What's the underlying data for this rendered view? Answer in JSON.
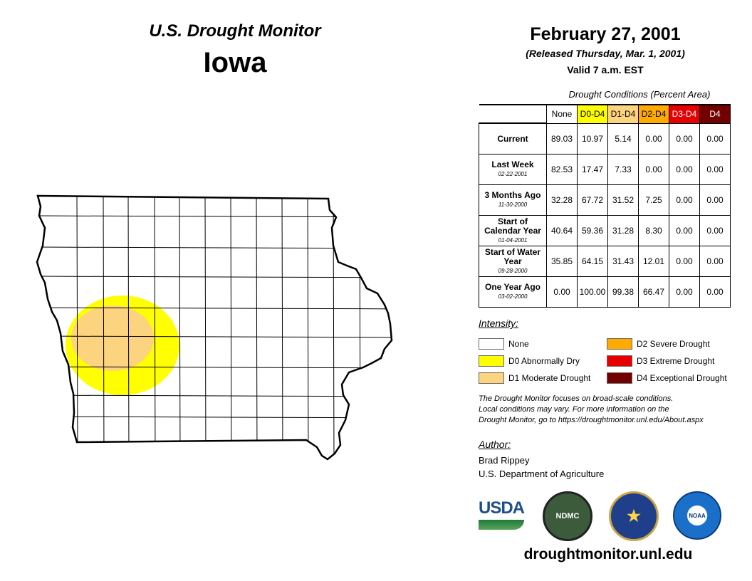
{
  "header": {
    "title": "U.S. Drought Monitor",
    "state": "Iowa",
    "date": "February 27, 2001",
    "released": "(Released Thursday, Mar. 1, 2001)",
    "valid": "Valid 7 a.m. EST"
  },
  "table": {
    "caption": "Drought Conditions (Percent Area)",
    "columns": [
      {
        "label": "None",
        "color": "#ffffff",
        "text": "#000"
      },
      {
        "label": "D0-D4",
        "color": "#ffff00",
        "text": "#000"
      },
      {
        "label": "D1-D4",
        "color": "#fcd37f",
        "text": "#000"
      },
      {
        "label": "D2-D4",
        "color": "#ffaa00",
        "text": "#000"
      },
      {
        "label": "D3-D4",
        "color": "#e60000",
        "text": "#fff"
      },
      {
        "label": "D4",
        "color": "#730000",
        "text": "#fff"
      }
    ],
    "rows": [
      {
        "label": "Current",
        "date": "",
        "values": [
          "89.03",
          "10.97",
          "5.14",
          "0.00",
          "0.00",
          "0.00"
        ]
      },
      {
        "label": "Last Week",
        "date": "02-22-2001",
        "values": [
          "82.53",
          "17.47",
          "7.33",
          "0.00",
          "0.00",
          "0.00"
        ]
      },
      {
        "label": "3 Months Ago",
        "date": "11-30-2000",
        "values": [
          "32.28",
          "67.72",
          "31.52",
          "7.25",
          "0.00",
          "0.00"
        ]
      },
      {
        "label": "Start of Calendar Year",
        "date": "01-04-2001",
        "values": [
          "40.64",
          "59.36",
          "31.28",
          "8.30",
          "0.00",
          "0.00"
        ]
      },
      {
        "label": "Start of Water Year",
        "date": "09-28-2000",
        "values": [
          "35.85",
          "64.15",
          "31.43",
          "12.01",
          "0.00",
          "0.00"
        ]
      },
      {
        "label": "One Year Ago",
        "date": "03-02-2000",
        "values": [
          "0.00",
          "100.00",
          "99.38",
          "66.47",
          "0.00",
          "0.00"
        ]
      }
    ]
  },
  "legend": {
    "title": "Intensity:",
    "items": [
      {
        "label": "None",
        "color": "#ffffff"
      },
      {
        "label": "D0 Abnormally Dry",
        "color": "#ffff00"
      },
      {
        "label": "D1 Moderate Drought",
        "color": "#fcd37f"
      },
      {
        "label": "D2 Severe Drought",
        "color": "#ffaa00"
      },
      {
        "label": "D3 Extreme Drought",
        "color": "#e60000"
      },
      {
        "label": "D4 Exceptional Drought",
        "color": "#730000"
      }
    ]
  },
  "note": [
    "The Drought Monitor focuses on broad-scale conditions.",
    "Local conditions may vary. For more information on the",
    "Drought Monitor, go to https://droughtmonitor.unl.edu/About.aspx"
  ],
  "author": {
    "title": "Author:",
    "name": "Brad Rippey",
    "org": "U.S. Department of Agriculture"
  },
  "logos": {
    "usda": "USDA",
    "ndmc": "NDMC",
    "noaa": "NOAA"
  },
  "footer": {
    "url": "droughtmonitor.unl.edu"
  }
}
